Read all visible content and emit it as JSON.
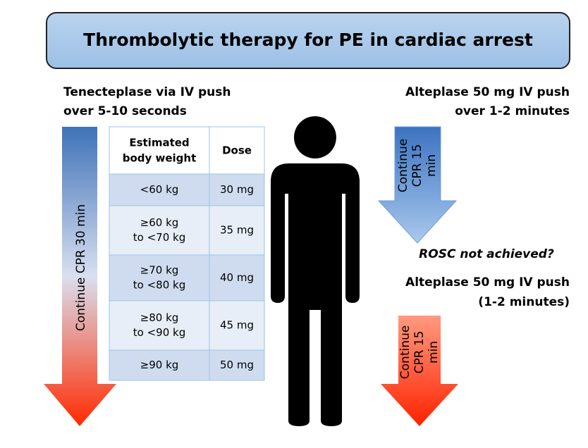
{
  "title": "Thrombolytic therapy for PE in cardiac arrest",
  "left": {
    "heading": [
      "Tenecteplase via IV push",
      "over 5-10 seconds"
    ],
    "arrow_label": "Continue CPR 30 min"
  },
  "table": {
    "header": [
      [
        "Estimated",
        "body weight"
      ],
      [
        "Dose"
      ]
    ],
    "rows": [
      [
        [
          "<60 kg"
        ],
        "30 mg"
      ],
      [
        [
          "≥60 kg",
          "to <70 kg"
        ],
        "35 mg"
      ],
      [
        [
          "≥70 kg",
          "to <80 kg"
        ],
        "40 mg"
      ],
      [
        [
          "≥80 kg",
          "to <90 kg"
        ],
        "45 mg"
      ],
      [
        [
          "≥90 kg"
        ],
        "50 mg"
      ]
    ]
  },
  "right": {
    "heading": [
      "Alteplase 50 mg IV push",
      "over 1-2 minutes"
    ],
    "arrow1_label": [
      "Continue",
      "CPR 15",
      "min"
    ],
    "question": "ROSC not achieved?",
    "heading2": [
      "Alteplase 50 mg IV push",
      "(1-2 minutes)"
    ],
    "arrow2_label": [
      "Continue",
      "CPR 15",
      "min"
    ]
  }
}
